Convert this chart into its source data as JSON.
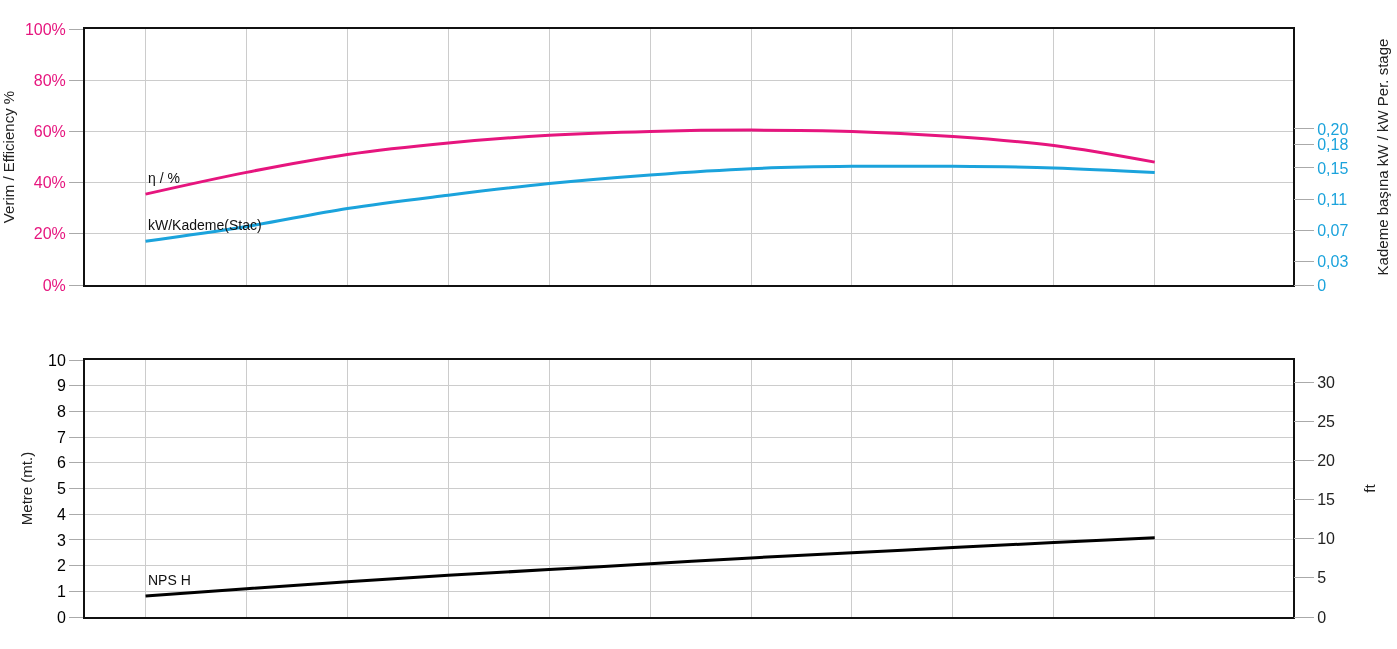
{
  "chart_data": [
    {
      "type": "line",
      "ylabel": "Verim / Efficiency %",
      "y2label": "Kademe başına kW / kW Per. stage",
      "categories": [
        null,
        null,
        null,
        null,
        null,
        null,
        null,
        null,
        null,
        null,
        null
      ],
      "series": [
        {
          "name": "η / %",
          "color": "#e6157e",
          "values": [
            35.5,
            44,
            51,
            55.5,
            58.5,
            60,
            60.5,
            60,
            58,
            54.5,
            48
          ]
        },
        {
          "name": "kW/Kademe(Stac)",
          "color": "#1ba3dc",
          "axis": "y2",
          "values": [
            0.056,
            0.075,
            0.098,
            0.115,
            0.13,
            0.141,
            0.149,
            0.152,
            0.152,
            0.15,
            0.144
          ]
        }
      ],
      "ylim": [
        0,
        100
      ],
      "yticks": [
        {
          "value": 0,
          "label": "0%"
        },
        {
          "value": 20,
          "label": "20%"
        },
        {
          "value": 40,
          "label": "40%"
        },
        {
          "value": 60,
          "label": "60%"
        },
        {
          "value": 80,
          "label": "80%"
        },
        {
          "value": 100,
          "label": "100%"
        }
      ],
      "y2lim": [
        0,
        0.328
      ],
      "y2ticks": [
        0,
        {
          "value": 0.03,
          "label": "0,03"
        },
        {
          "value": 0.07,
          "label": "0,07"
        },
        {
          "value": 0.11,
          "label": "0,11"
        },
        {
          "value": 0.15,
          "label": "0,15"
        },
        {
          "value": 0.18,
          "label": "0,18"
        },
        {
          "value": 0.2,
          "label": "0,20"
        }
      ],
      "grid": true,
      "legend": false,
      "line_style": "solid",
      "marker": "none"
    },
    {
      "type": "line",
      "ylabel": "Metre (mt.)",
      "y2label": "ft",
      "categories": [
        null,
        null,
        null,
        null,
        null,
        null,
        null,
        null,
        null,
        null,
        null
      ],
      "series": [
        {
          "name": "NPS H",
          "color": "#000000",
          "values": [
            0.82,
            1.1,
            1.37,
            1.62,
            1.85,
            2.07,
            2.3,
            2.5,
            2.7,
            2.9,
            3.08
          ]
        }
      ],
      "ylim": [
        0,
        10
      ],
      "yticks": [
        0,
        1,
        2,
        3,
        4,
        5,
        6,
        7,
        8,
        9,
        10
      ],
      "y2lim": [
        0,
        32.81
      ],
      "y2ticks": [
        0,
        5,
        10,
        15,
        20,
        25,
        30
      ],
      "grid": true,
      "legend": false,
      "line_style": "solid",
      "marker": "none"
    }
  ]
}
